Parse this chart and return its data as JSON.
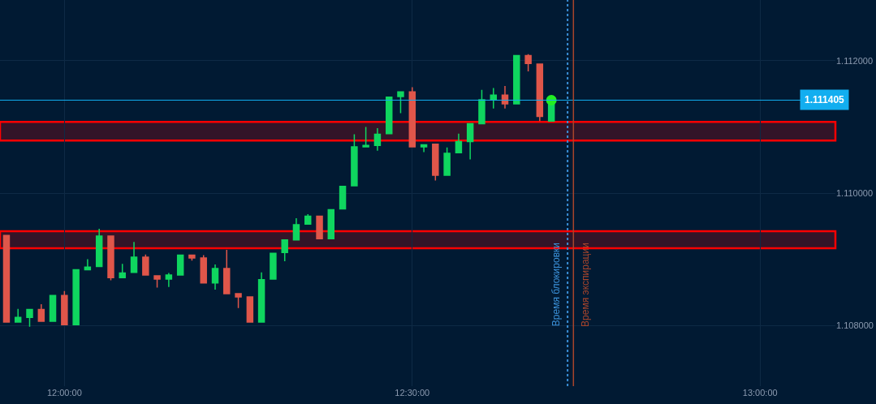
{
  "chart_data": {
    "type": "candlestick",
    "x": [
      11.9167,
      11.9333,
      11.95,
      11.9667,
      11.9833,
      12,
      12.0167,
      12.0333,
      12.05,
      12.0667,
      12.0833,
      12.1,
      12.1167,
      12.1333,
      12.15,
      12.1667,
      12.1833,
      12.2,
      12.2167,
      12.2333,
      12.25,
      12.2667,
      12.2833,
      12.3,
      12.3167,
      12.3333,
      12.35,
      12.3667,
      12.3833,
      12.4,
      12.4167,
      12.4333,
      12.45,
      12.4667,
      12.4833,
      12.5,
      12.5167,
      12.5333,
      12.55,
      12.5667,
      12.5833,
      12.6,
      12.6167,
      12.6333,
      12.65,
      12.6667,
      12.6833,
      12.7
    ],
    "ohlc": [
      [
        1.10936,
        1.10936,
        1.10805,
        1.10805
      ],
      [
        1.10805,
        1.10825,
        1.10805,
        1.10812
      ],
      [
        1.10812,
        1.10825,
        1.10798,
        1.10824
      ],
      [
        1.10824,
        1.10832,
        1.10806,
        1.10806
      ],
      [
        1.10806,
        1.10845,
        1.10806,
        1.10845
      ],
      [
        1.10845,
        1.10852,
        1.10801,
        1.10801
      ],
      [
        1.10801,
        1.10884,
        1.10801,
        1.10884
      ],
      [
        1.10884,
        1.109,
        1.10883,
        1.10888
      ],
      [
        1.10889,
        1.10946,
        1.10889,
        1.10935
      ],
      [
        1.10935,
        1.10935,
        1.10868,
        1.10872
      ],
      [
        1.10872,
        1.10893,
        1.10872,
        1.10879
      ],
      [
        1.1088,
        1.10926,
        1.1088,
        1.10903
      ],
      [
        1.10903,
        1.10907,
        1.10876,
        1.10876
      ],
      [
        1.10875,
        1.10875,
        1.10857,
        1.1087
      ],
      [
        1.1087,
        1.10879,
        1.10858,
        1.10876
      ],
      [
        1.10876,
        1.10906,
        1.10876,
        1.10906
      ],
      [
        1.10906,
        1.10906,
        1.10898,
        1.10902
      ],
      [
        1.10902,
        1.10906,
        1.10864,
        1.10864
      ],
      [
        1.10864,
        1.10892,
        1.10854,
        1.10886
      ],
      [
        1.10886,
        1.10914,
        1.10848,
        1.10848
      ],
      [
        1.10848,
        1.10848,
        1.10826,
        1.10843
      ],
      [
        1.10843,
        1.10843,
        1.10805,
        1.10805
      ],
      [
        1.10805,
        1.1088,
        1.10805,
        1.10869
      ],
      [
        1.1087,
        1.10909,
        1.1087,
        1.10909
      ],
      [
        1.1091,
        1.10929,
        1.10897,
        1.10929
      ],
      [
        1.10929,
        1.10962,
        1.10929,
        1.10952
      ],
      [
        1.10953,
        1.10968,
        1.10953,
        1.10965
      ],
      [
        1.10965,
        1.10965,
        1.10931,
        1.10931
      ],
      [
        1.10931,
        1.10975,
        1.1093,
        1.10975
      ],
      [
        1.10976,
        1.1101,
        1.10976,
        1.1101
      ],
      [
        1.11011,
        1.11089,
        1.11011,
        1.1107
      ],
      [
        1.1107,
        1.111,
        1.1107,
        1.11072
      ],
      [
        1.11072,
        1.11098,
        1.11064,
        1.11089
      ],
      [
        1.1109,
        1.11145,
        1.1109,
        1.11145
      ],
      [
        1.11146,
        1.11153,
        1.11121,
        1.11153
      ],
      [
        1.11153,
        1.1116,
        1.1107,
        1.1107
      ],
      [
        1.1107,
        1.11073,
        1.11062,
        1.11073
      ],
      [
        1.11074,
        1.11074,
        1.11019,
        1.11027
      ],
      [
        1.11027,
        1.11069,
        1.11027,
        1.1106
      ],
      [
        1.11061,
        1.1109,
        1.11061,
        1.11078
      ],
      [
        1.11078,
        1.11105,
        1.11051,
        1.11105
      ],
      [
        1.11105,
        1.11156,
        1.11105,
        1.11141
      ],
      [
        1.11141,
        1.11159,
        1.11128,
        1.11148
      ],
      [
        1.11148,
        1.11162,
        1.11128,
        1.11135
      ],
      [
        1.11135,
        1.11208,
        1.11135,
        1.11208
      ],
      [
        1.11208,
        1.1121,
        1.11184,
        1.11196
      ],
      [
        1.11195,
        1.11195,
        1.11109,
        1.11116
      ],
      [
        1.11109,
        1.111405,
        1.11109,
        1.111405
      ]
    ],
    "colors": [
      "#e0564a",
      "#0fd65f",
      "#0fd65f",
      "#e0564a",
      "#0fd65f",
      "#e0564a",
      "#0fd65f",
      "#0fd65f",
      "#0fd65f",
      "#e0564a",
      "#0fd65f",
      "#0fd65f",
      "#e0564a",
      "#e0564a",
      "#0fd65f",
      "#0fd65f",
      "#e0564a",
      "#e0564a",
      "#0fd65f",
      "#e0564a",
      "#e0564a",
      "#e0564a",
      "#0fd65f",
      "#0fd65f",
      "#0fd65f",
      "#0fd65f",
      "#0fd65f",
      "#e0564a",
      "#0fd65f",
      "#0fd65f",
      "#0fd65f",
      "#0fd65f",
      "#0fd65f",
      "#0fd65f",
      "#0fd65f",
      "#e0564a",
      "#0fd65f",
      "#e0564a",
      "#0fd65f",
      "#0fd65f",
      "#0fd65f",
      "#0fd65f",
      "#0fd65f",
      "#e0564a",
      "#0fd65f",
      "#e0564a",
      "#e0564a",
      "#0fd65f"
    ],
    "series": [
      {
        "type": "scatter",
        "x": [
          12.7
        ],
        "values": [
          1.111405
        ],
        "color": "#22ee22",
        "marker": "circle"
      }
    ],
    "xlim": [
      11.9074,
      13.1083
    ],
    "xticks": [
      {
        "value": 12,
        "label": "12:00:00"
      },
      {
        "value": 12.5,
        "label": "12:30:00"
      },
      {
        "value": 13,
        "label": "13:00:00"
      }
    ],
    "ylim": [
      1.10708,
      1.11292
    ],
    "yticks": [
      {
        "value": 1.108,
        "label": "1.108000"
      },
      {
        "value": 1.11,
        "label": "1.110000"
      },
      {
        "value": 1.112,
        "label": "1.112000"
      }
    ],
    "grid": true,
    "ref_lines": [
      {
        "axis": "y",
        "value": 1.111405,
        "label": "1.111405",
        "color": "#12aef0",
        "line_style": "solid"
      },
      {
        "axis": "x",
        "value": 12.7233,
        "label": "Время блокировки",
        "color": "#3a8fd6",
        "line_style": "dotted"
      },
      {
        "axis": "x",
        "value": 12.7317,
        "label": "Время экспирации",
        "color": "#a8452c",
        "line_style": "solid"
      }
    ],
    "bands": [
      {
        "axis": "y",
        "from": 1.110795,
        "to": 1.111077,
        "color": "#ff0000"
      },
      {
        "axis": "y",
        "from": 1.109165,
        "to": 1.109423,
        "color": "#ff0000"
      }
    ]
  }
}
